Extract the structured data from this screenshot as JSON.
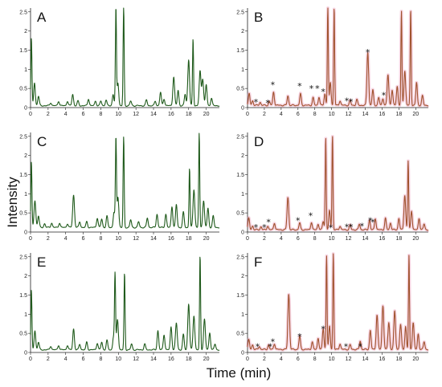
{
  "figure": {
    "ylabel": "Intensity",
    "xlabel": "Time (min)"
  },
  "colors": {
    "green": "#1f5a1b",
    "red": "#a0522d",
    "red_halo": "#e98ab0"
  },
  "chart_data": [
    {
      "type": "line",
      "letter": "A",
      "color": "green",
      "xlim": [
        0,
        21.5
      ],
      "ylim": [
        0,
        2.6
      ],
      "xticks": [
        0,
        2,
        4,
        6,
        8,
        10,
        12,
        14,
        16,
        18,
        20
      ],
      "yticks": [
        0,
        0.5,
        1,
        1.5,
        2,
        2.5
      ],
      "ytick_labels": [
        "0",
        "0.5",
        "1",
        "1.5",
        "2",
        "2.5"
      ],
      "baseline": 0.05,
      "peaks": [
        [
          0.1,
          1.75
        ],
        [
          0.45,
          0.6
        ],
        [
          0.9,
          0.25
        ],
        [
          2.3,
          0.08
        ],
        [
          3.2,
          0.12
        ],
        [
          4.2,
          0.12
        ],
        [
          4.8,
          0.3
        ],
        [
          5.4,
          0.12
        ],
        [
          6.6,
          0.18
        ],
        [
          7.4,
          0.12
        ],
        [
          8.0,
          0.12
        ],
        [
          8.6,
          0.15
        ],
        [
          9.4,
          0.3
        ],
        [
          9.72,
          2.55
        ],
        [
          9.95,
          0.6
        ],
        [
          10.6,
          2.55
        ],
        [
          11.4,
          0.12
        ],
        [
          13.2,
          0.15
        ],
        [
          14.2,
          0.12
        ],
        [
          14.8,
          0.35
        ],
        [
          15.2,
          0.18
        ],
        [
          16.3,
          0.75
        ],
        [
          16.8,
          0.4
        ],
        [
          17.6,
          0.3
        ],
        [
          18.0,
          1.2
        ],
        [
          18.5,
          1.75
        ],
        [
          19.3,
          0.9
        ],
        [
          19.6,
          0.7
        ],
        [
          20.0,
          0.55
        ],
        [
          20.6,
          0.2
        ]
      ],
      "markers": []
    },
    {
      "type": "line",
      "letter": "B",
      "color": "red",
      "xlim": [
        0,
        21.5
      ],
      "ylim": [
        0,
        2.6
      ],
      "xticks": [
        0,
        2,
        4,
        6,
        8,
        10,
        12,
        14,
        16,
        18,
        20
      ],
      "yticks": [
        0,
        0.5,
        1,
        1.5,
        2,
        2.5
      ],
      "ytick_labels": [
        "0",
        "0.5",
        "1",
        "1.5",
        "2",
        "2.5"
      ],
      "baseline": 0.06,
      "peaks": [
        [
          0.2,
          0.3
        ],
        [
          0.6,
          0.12
        ],
        [
          1.5,
          0.08
        ],
        [
          2.6,
          0.1
        ],
        [
          3.1,
          0.35
        ],
        [
          4.8,
          0.25
        ],
        [
          6.3,
          0.3
        ],
        [
          7.8,
          0.2
        ],
        [
          8.5,
          0.22
        ],
        [
          9.2,
          0.3
        ],
        [
          9.55,
          2.55
        ],
        [
          9.85,
          0.6
        ],
        [
          10.3,
          2.55
        ],
        [
          11.0,
          0.12
        ],
        [
          12.2,
          0.12
        ],
        [
          13.0,
          0.15
        ],
        [
          14.3,
          1.4
        ],
        [
          14.9,
          0.4
        ],
        [
          15.6,
          0.2
        ],
        [
          16.1,
          0.18
        ],
        [
          16.7,
          0.8
        ],
        [
          17.2,
          0.4
        ],
        [
          17.8,
          0.5
        ],
        [
          18.3,
          2.45
        ],
        [
          18.7,
          0.9
        ],
        [
          19.4,
          2.5
        ],
        [
          20.1,
          0.6
        ],
        [
          20.8,
          0.25
        ]
      ],
      "markers": [
        [
          1.0,
          0.15
        ],
        [
          2.4,
          0.13
        ],
        [
          3.0,
          0.6
        ],
        [
          6.2,
          0.57
        ],
        [
          7.6,
          0.5
        ],
        [
          8.3,
          0.5
        ],
        [
          9.0,
          0.42
        ],
        [
          11.8,
          0.18
        ],
        [
          12.3,
          0.16
        ],
        [
          14.3,
          1.45
        ],
        [
          16.2,
          0.32
        ]
      ]
    },
    {
      "type": "line",
      "letter": "C",
      "color": "green",
      "xlim": [
        0,
        21.5
      ],
      "ylim": [
        0,
        2.6
      ],
      "xticks": [
        0,
        2,
        4,
        6,
        8,
        10,
        12,
        14,
        16,
        18,
        20
      ],
      "yticks": [
        0,
        0.5,
        1,
        1.5,
        2,
        2.5
      ],
      "ytick_labels": [
        "0",
        "0.5",
        "1",
        "1.5",
        "2",
        "2.5"
      ],
      "baseline": 0.12,
      "peaks": [
        [
          0.1,
          1.7
        ],
        [
          0.5,
          0.7
        ],
        [
          0.9,
          0.3
        ],
        [
          1.6,
          0.1
        ],
        [
          2.4,
          0.12
        ],
        [
          3.3,
          0.12
        ],
        [
          4.2,
          0.1
        ],
        [
          4.9,
          0.85
        ],
        [
          5.6,
          0.15
        ],
        [
          6.4,
          0.15
        ],
        [
          7.6,
          0.25
        ],
        [
          8.1,
          0.22
        ],
        [
          8.7,
          0.3
        ],
        [
          9.5,
          0.4
        ],
        [
          9.72,
          2.3
        ],
        [
          9.95,
          0.8
        ],
        [
          10.6,
          2.35
        ],
        [
          11.4,
          0.2
        ],
        [
          12.3,
          0.15
        ],
        [
          13.3,
          0.25
        ],
        [
          14.4,
          0.35
        ],
        [
          15.4,
          0.35
        ],
        [
          16.1,
          0.55
        ],
        [
          16.6,
          0.6
        ],
        [
          17.4,
          0.4
        ],
        [
          18.1,
          1.55
        ],
        [
          18.6,
          1.0
        ],
        [
          19.2,
          2.45
        ],
        [
          19.7,
          0.7
        ],
        [
          20.2,
          0.5
        ],
        [
          20.8,
          0.3
        ]
      ],
      "markers": []
    },
    {
      "type": "line",
      "letter": "D",
      "color": "red",
      "xlim": [
        0,
        21.5
      ],
      "ylim": [
        0,
        2.6
      ],
      "xticks": [
        0,
        2,
        4,
        6,
        8,
        10,
        12,
        14,
        16,
        18,
        20
      ],
      "yticks": [
        0,
        0.5,
        1,
        1.5,
        2,
        2.5
      ],
      "ytick_labels": [
        "0",
        "0.5",
        "1",
        "1.5",
        "2",
        "2.5"
      ],
      "baseline": 0.06,
      "peaks": [
        [
          0.15,
          0.3
        ],
        [
          0.6,
          0.1
        ],
        [
          1.6,
          0.08
        ],
        [
          2.4,
          0.1
        ],
        [
          3.2,
          0.18
        ],
        [
          4.8,
          0.85
        ],
        [
          6.2,
          0.18
        ],
        [
          7.6,
          0.2
        ],
        [
          8.4,
          0.15
        ],
        [
          9.0,
          0.22
        ],
        [
          9.3,
          2.4
        ],
        [
          9.75,
          0.5
        ],
        [
          10.1,
          2.45
        ],
        [
          11.0,
          0.1
        ],
        [
          12.2,
          0.12
        ],
        [
          13.3,
          0.15
        ],
        [
          14.5,
          0.25
        ],
        [
          15.2,
          0.3
        ],
        [
          16.4,
          0.3
        ],
        [
          17.0,
          0.18
        ],
        [
          18.0,
          0.3
        ],
        [
          18.7,
          0.9
        ],
        [
          19.1,
          1.8
        ],
        [
          19.5,
          0.5
        ],
        [
          20.4,
          0.3
        ],
        [
          21.0,
          0.15
        ]
      ],
      "markers": [
        [
          1.0,
          0.13
        ],
        [
          2.0,
          0.13
        ],
        [
          2.5,
          0.26
        ],
        [
          6.0,
          0.3
        ],
        [
          7.5,
          0.43
        ],
        [
          9.9,
          0.12
        ],
        [
          11.8,
          0.14
        ],
        [
          12.3,
          0.14
        ],
        [
          13.6,
          0.16
        ],
        [
          14.6,
          0.3
        ],
        [
          14.9,
          0.26
        ]
      ]
    },
    {
      "type": "line",
      "letter": "E",
      "color": "green",
      "xlim": [
        0,
        21.5
      ],
      "ylim": [
        0,
        2.6
      ],
      "xticks": [
        0,
        2,
        4,
        6,
        8,
        10,
        12,
        14,
        16,
        18,
        20
      ],
      "yticks": [
        0,
        0.5,
        1,
        1.5,
        2,
        2.5
      ],
      "ytick_labels": [
        "0",
        "0.5",
        "1",
        "1.5",
        "2",
        "2.5"
      ],
      "baseline": 0.07,
      "peaks": [
        [
          0.1,
          1.55
        ],
        [
          0.5,
          0.5
        ],
        [
          0.9,
          0.2
        ],
        [
          2.3,
          0.1
        ],
        [
          3.2,
          0.12
        ],
        [
          4.2,
          0.12
        ],
        [
          4.9,
          0.55
        ],
        [
          5.6,
          0.15
        ],
        [
          6.4,
          0.2
        ],
        [
          7.6,
          0.18
        ],
        [
          8.1,
          0.2
        ],
        [
          8.7,
          0.25
        ],
        [
          9.45,
          0.35
        ],
        [
          9.62,
          1.95
        ],
        [
          9.9,
          0.8
        ],
        [
          10.7,
          2.0
        ],
        [
          11.5,
          0.15
        ],
        [
          13.0,
          0.15
        ],
        [
          14.5,
          0.5
        ],
        [
          15.2,
          0.4
        ],
        [
          16.0,
          0.6
        ],
        [
          16.6,
          0.7
        ],
        [
          17.4,
          0.4
        ],
        [
          18.0,
          1.2
        ],
        [
          18.6,
          0.9
        ],
        [
          19.3,
          2.45
        ],
        [
          19.8,
          0.8
        ],
        [
          20.4,
          0.45
        ],
        [
          21.0,
          0.15
        ]
      ],
      "markers": []
    },
    {
      "type": "line",
      "letter": "F",
      "color": "red",
      "xlim": [
        0,
        21.5
      ],
      "ylim": [
        0,
        2.6
      ],
      "xticks": [
        0,
        2,
        4,
        6,
        8,
        10,
        12,
        14,
        16,
        18,
        20
      ],
      "yticks": [
        0,
        0.5,
        1,
        1.5,
        2,
        2.5
      ],
      "ytick_labels": [
        "0",
        "0.5",
        "1",
        "1.5",
        "2",
        "2.5"
      ],
      "baseline": 0.08,
      "peaks": [
        [
          0.15,
          0.25
        ],
        [
          0.6,
          0.12
        ],
        [
          1.4,
          0.08
        ],
        [
          2.5,
          0.12
        ],
        [
          3.2,
          0.15
        ],
        [
          4.9,
          1.45
        ],
        [
          6.2,
          0.35
        ],
        [
          7.7,
          0.2
        ],
        [
          8.4,
          0.3
        ],
        [
          9.0,
          0.55
        ],
        [
          9.4,
          2.45
        ],
        [
          9.75,
          0.6
        ],
        [
          10.2,
          2.5
        ],
        [
          11.0,
          0.15
        ],
        [
          12.2,
          0.12
        ],
        [
          13.4,
          0.22
        ],
        [
          14.6,
          0.5
        ],
        [
          15.4,
          0.9
        ],
        [
          16.1,
          1.15
        ],
        [
          16.8,
          0.7
        ],
        [
          17.5,
          1.0
        ],
        [
          18.2,
          0.65
        ],
        [
          18.8,
          0.6
        ],
        [
          19.2,
          2.45
        ],
        [
          19.7,
          0.7
        ],
        [
          20.3,
          0.4
        ],
        [
          21.0,
          0.2
        ]
      ],
      "markers": [
        [
          1.2,
          0.16
        ],
        [
          2.7,
          0.16
        ],
        [
          3.0,
          0.28
        ],
        [
          6.2,
          0.42
        ],
        [
          9.0,
          0.62
        ],
        [
          11.7,
          0.16
        ],
        [
          13.4,
          0.16
        ]
      ]
    }
  ]
}
